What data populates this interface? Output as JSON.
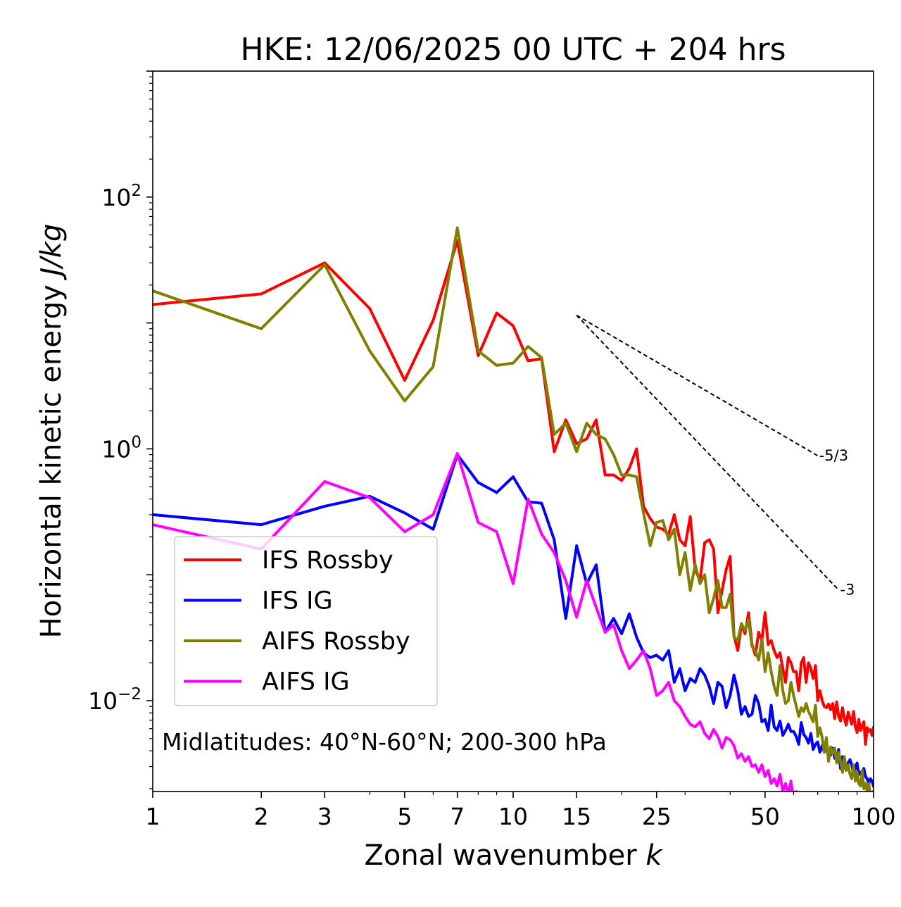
{
  "chart_data": {
    "type": "line",
    "title": "HKE: 12/06/2025 00 UTC + 204 hrs",
    "xlabel": "Zonal wavenumber",
    "xlabel_italic": "k",
    "ylabel": "Horizontal kinetic energy",
    "ylabel_italic": "J/kg",
    "xscale": "log",
    "yscale": "log",
    "xlim": [
      1,
      100
    ],
    "ylim": [
      0.0019,
      1000
    ],
    "xticks": [
      1,
      2,
      3,
      5,
      7,
      10,
      15,
      25,
      50,
      100
    ],
    "xtick_labels": [
      "1",
      "2",
      "3",
      "5",
      "7",
      "10",
      "15",
      "25",
      "50",
      "100"
    ],
    "yticks": [
      0.01,
      1,
      100
    ],
    "ytick_labels": [
      {
        "base": "10",
        "exp": "−2"
      },
      {
        "base": "10",
        "exp": "0"
      },
      {
        "base": "10",
        "exp": "2"
      }
    ],
    "grid": false,
    "legend_position": "lower-left",
    "annotation": "Midlatitudes: 40°N-60°N; 200-300 hPa",
    "reference_lines": [
      {
        "label": "-5/3",
        "slope": -1.6667,
        "x_start": 15,
        "y_start": 11.5,
        "x_end": 70
      },
      {
        "label": "-3",
        "slope": -3,
        "x_start": 15,
        "y_start": 11.5,
        "x_end": 80
      }
    ],
    "series": [
      {
        "name": "IFS Rossby",
        "color": "#ff0000",
        "x": [
          1,
          2,
          3,
          4,
          5,
          6,
          7,
          8,
          9,
          10,
          11,
          12,
          13,
          14,
          15,
          16,
          17,
          18,
          19,
          20,
          21,
          22,
          23,
          24,
          25,
          26,
          27,
          28,
          29,
          30,
          31,
          32,
          33,
          34,
          35,
          36,
          37,
          38,
          39,
          40,
          41,
          42,
          43,
          44,
          45,
          46,
          47,
          48,
          49,
          50,
          51,
          52,
          53,
          54,
          55,
          56,
          57,
          58,
          59,
          60,
          61,
          62,
          63,
          64,
          65,
          66,
          67,
          68,
          69,
          70,
          71,
          72,
          73,
          74,
          75,
          76,
          77,
          78,
          79,
          80,
          81,
          82,
          83,
          84,
          85,
          86,
          87,
          88,
          89,
          90,
          91,
          92,
          93,
          94,
          95,
          96,
          97,
          98,
          99,
          100
        ],
        "y": [
          14,
          17,
          30,
          13,
          3.5,
          10.5,
          45,
          5.5,
          12,
          9.5,
          5,
          5.2,
          0.95,
          1.7,
          1.1,
          1.2,
          1.7,
          0.62,
          0.62,
          0.56,
          0.7,
          1.0,
          0.35,
          0.28,
          0.24,
          0.23,
          0.21,
          0.3,
          0.19,
          0.17,
          0.29,
          0.11,
          0.09,
          0.18,
          0.19,
          0.16,
          0.05,
          0.075,
          0.11,
          0.14,
          0.033,
          0.025,
          0.04,
          0.034,
          0.05,
          0.028,
          0.023,
          0.035,
          0.03,
          0.05,
          0.028,
          0.03,
          0.025,
          0.022,
          0.024,
          0.018,
          0.014,
          0.022,
          0.02,
          0.017,
          0.017,
          0.012,
          0.02,
          0.022,
          0.014,
          0.02,
          0.018,
          0.015,
          0.019,
          0.01,
          0.012,
          0.01,
          0.009,
          0.0088,
          0.0094,
          0.0085,
          0.0095,
          0.0072,
          0.0098,
          0.0075,
          0.0069,
          0.0088,
          0.0072,
          0.0064,
          0.0081,
          0.0073,
          0.0065,
          0.0082,
          0.0062,
          0.0056,
          0.0071,
          0.0058,
          0.0063,
          0.0068,
          0.0045,
          0.0061,
          0.0057,
          0.0059,
          0.0053,
          0.0061
        ]
      },
      {
        "name": "IFS IG",
        "color": "#0000ff",
        "x": [
          1,
          2,
          3,
          4,
          5,
          6,
          7,
          8,
          9,
          10,
          11,
          12,
          13,
          14,
          15,
          16,
          17,
          18,
          19,
          20,
          21,
          22,
          23,
          24,
          25,
          26,
          27,
          28,
          29,
          30,
          31,
          32,
          33,
          34,
          35,
          36,
          37,
          38,
          39,
          40,
          41,
          42,
          43,
          44,
          45,
          46,
          47,
          48,
          49,
          50,
          51,
          52,
          53,
          54,
          55,
          56,
          57,
          58,
          59,
          60,
          61,
          62,
          63,
          64,
          65,
          66,
          67,
          68,
          69,
          70,
          71,
          72,
          73,
          74,
          75,
          76,
          77,
          78,
          79,
          80,
          81,
          82,
          83,
          84,
          85,
          86,
          87,
          88,
          89,
          90,
          91,
          92,
          93,
          94,
          95,
          96,
          97,
          98,
          99,
          100
        ],
        "y": [
          0.3,
          0.25,
          0.35,
          0.42,
          0.31,
          0.23,
          0.9,
          0.54,
          0.45,
          0.6,
          0.38,
          0.37,
          0.19,
          0.045,
          0.17,
          0.085,
          0.12,
          0.035,
          0.045,
          0.034,
          0.049,
          0.032,
          0.024,
          0.022,
          0.023,
          0.021,
          0.025,
          0.014,
          0.018,
          0.012,
          0.015,
          0.014,
          0.018,
          0.016,
          0.013,
          0.0095,
          0.014,
          0.013,
          0.0088,
          0.011,
          0.016,
          0.012,
          0.0078,
          0.009,
          0.0075,
          0.0078,
          0.011,
          0.0095,
          0.0068,
          0.0071,
          0.0058,
          0.0092,
          0.0062,
          0.0058,
          0.0069,
          0.0053,
          0.0058,
          0.0065,
          0.0057,
          0.0057,
          0.0052,
          0.0045,
          0.0067,
          0.0054,
          0.0051,
          0.0046,
          0.0055,
          0.0041,
          0.0045,
          0.0047,
          0.0039,
          0.0044,
          0.0039,
          0.0042,
          0.0036,
          0.0037,
          0.0042,
          0.0035,
          0.0034,
          0.0041,
          0.0029,
          0.0036,
          0.0032,
          0.0028,
          0.0032,
          0.0034,
          0.0031,
          0.0026,
          0.0029,
          0.0032,
          0.0026,
          0.0027,
          0.0024,
          0.0029,
          0.0025,
          0.0024,
          0.0022,
          0.0024,
          0.0023,
          0.0021
        ]
      },
      {
        "name": "AIFS Rossby",
        "color": "#808000",
        "x": [
          1,
          2,
          3,
          4,
          5,
          6,
          7,
          8,
          9,
          10,
          11,
          12,
          13,
          14,
          15,
          16,
          17,
          18,
          19,
          20,
          21,
          22,
          23,
          24,
          25,
          26,
          27,
          28,
          29,
          30,
          31,
          32,
          33,
          34,
          35,
          36,
          37,
          38,
          39,
          40,
          41,
          42,
          43,
          44,
          45,
          46,
          47,
          48,
          49,
          50,
          51,
          52,
          53,
          54,
          55,
          56,
          57,
          58,
          59,
          60,
          61,
          62,
          63,
          64,
          65,
          66,
          67,
          68,
          69,
          70,
          71,
          72,
          73,
          74,
          75,
          76,
          77,
          78,
          79,
          80,
          81,
          82,
          83,
          84,
          85,
          86,
          87,
          88,
          89,
          90,
          91,
          92,
          93,
          94,
          95,
          96,
          97,
          98,
          99,
          100
        ],
        "y": [
          18,
          9,
          29,
          6,
          2.4,
          4.5,
          57,
          6,
          4.6,
          4.8,
          6.5,
          5.3,
          1.3,
          1.6,
          0.95,
          1.6,
          1.3,
          1.2,
          0.9,
          0.62,
          0.62,
          0.6,
          0.31,
          0.17,
          0.26,
          0.27,
          0.19,
          0.23,
          0.1,
          0.15,
          0.075,
          0.12,
          0.085,
          0.1,
          0.05,
          0.065,
          0.09,
          0.055,
          0.055,
          0.07,
          0.032,
          0.03,
          0.041,
          0.036,
          0.044,
          0.027,
          0.025,
          0.021,
          0.031,
          0.017,
          0.024,
          0.017,
          0.013,
          0.011,
          0.019,
          0.012,
          0.0095,
          0.01,
          0.014,
          0.011,
          0.0091,
          0.0075,
          0.0088,
          0.0082,
          0.0095,
          0.0082,
          0.0075,
          0.0068,
          0.0092,
          0.0052,
          0.0061,
          0.0051,
          0.0039,
          0.0051,
          0.0033,
          0.0043,
          0.0038,
          0.0042,
          0.0032,
          0.0039,
          0.0033,
          0.0027,
          0.0036,
          0.0028,
          0.0031,
          0.0026,
          0.0024,
          0.0031,
          0.0023,
          0.0027,
          0.0022,
          0.0021,
          0.0028,
          0.002,
          0.0022,
          0.0019,
          0.0022,
          0.0018,
          0.0017,
          0.0019
        ]
      },
      {
        "name": "AIFS IG",
        "color": "#ff00ff",
        "x": [
          1,
          2,
          3,
          4,
          5,
          6,
          7,
          8,
          9,
          10,
          11,
          12,
          13,
          14,
          15,
          16,
          17,
          18,
          19,
          20,
          21,
          22,
          23,
          24,
          25,
          26,
          27,
          28,
          29,
          30,
          31,
          32,
          33,
          34,
          35,
          36,
          37,
          38,
          39,
          40,
          41,
          42,
          43,
          44,
          45,
          46,
          47,
          48,
          49,
          50,
          51,
          52,
          53,
          54,
          55,
          56,
          57,
          58,
          59,
          60,
          61,
          62,
          63,
          64,
          65,
          66,
          67,
          68,
          69,
          70
        ],
        "y": [
          0.25,
          0.16,
          0.55,
          0.41,
          0.22,
          0.3,
          0.92,
          0.26,
          0.22,
          0.085,
          0.4,
          0.21,
          0.15,
          0.09,
          0.046,
          0.09,
          0.055,
          0.035,
          0.04,
          0.025,
          0.018,
          0.021,
          0.025,
          0.018,
          0.011,
          0.012,
          0.014,
          0.01,
          0.009,
          0.0075,
          0.0065,
          0.0062,
          0.0068,
          0.0055,
          0.005,
          0.0059,
          0.0052,
          0.0042,
          0.0051,
          0.0049,
          0.0044,
          0.0035,
          0.0038,
          0.0033,
          0.0036,
          0.003,
          0.0031,
          0.0027,
          0.0031,
          0.0025,
          0.0028,
          0.0022,
          0.0024,
          0.0021,
          0.0026,
          0.0019,
          0.0022,
          0.0018,
          0.0023,
          0.0016,
          0.0019,
          0.0015,
          0.0018,
          0.0016,
          0.0014,
          0.0013,
          0.0012,
          0.0016,
          0.0011,
          0.0012
        ]
      }
    ]
  }
}
